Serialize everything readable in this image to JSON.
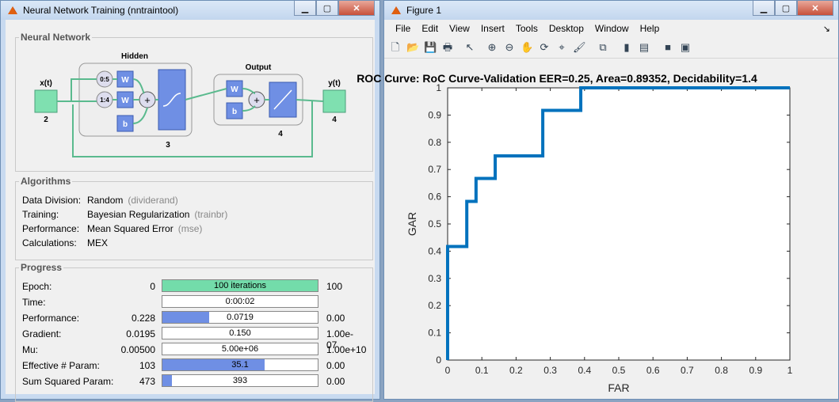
{
  "left_window": {
    "title": "Neural Network Training (nntraintool)",
    "network": {
      "section_title": "Neural Network",
      "input_label": "x(t)",
      "input_size": "2",
      "hidden_label": "Hidden",
      "hidden_size": "3",
      "delay1": "0:5",
      "delay2": "1:4",
      "weight": "W",
      "bias": "b",
      "plus": "+",
      "output_label": "Output",
      "output_size": "4",
      "y_label": "y(t)",
      "y_size": "4"
    },
    "algorithms": {
      "section_title": "Algorithms",
      "rows": [
        {
          "label": "Data Division:",
          "value": "Random",
          "fn": "(dividerand)"
        },
        {
          "label": "Training:",
          "value": "Bayesian Regularization",
          "fn": "(trainbr)"
        },
        {
          "label": "Performance:",
          "value": "Mean Squared Error",
          "fn": "(mse)"
        },
        {
          "label": "Calculations:",
          "value": "MEX",
          "fn": ""
        }
      ]
    },
    "progress": {
      "section_title": "Progress",
      "rows": [
        {
          "label": "Epoch:",
          "start": "0",
          "current": "100 iterations",
          "end": "100",
          "fill": 1.0,
          "color": "#73dcaa"
        },
        {
          "label": "Time:",
          "start": "",
          "current": "0:00:02",
          "end": "",
          "fill": 0,
          "color": "#6f8fe4"
        },
        {
          "label": "Performance:",
          "start": "0.228",
          "current": "0.0719",
          "end": "0.00",
          "fill": 0.3,
          "color": "#6f8fe4"
        },
        {
          "label": "Gradient:",
          "start": "0.0195",
          "current": "0.150",
          "end": "1.00e-07",
          "fill": 0,
          "color": "#6f8fe4"
        },
        {
          "label": "Mu:",
          "start": "0.00500",
          "current": "5.00e+06",
          "end": "1.00e+10",
          "fill": 0,
          "color": "#6f8fe4"
        },
        {
          "label": "Effective # Param:",
          "start": "103",
          "current": "35.1",
          "end": "0.00",
          "fill": 0.66,
          "color": "#6f8fe4"
        },
        {
          "label": "Sum Squared Param:",
          "start": "473",
          "current": "393",
          "end": "0.00",
          "fill": 0.06,
          "color": "#6f8fe4"
        }
      ]
    }
  },
  "right_window": {
    "title": "Figure 1",
    "menu": [
      "File",
      "Edit",
      "View",
      "Insert",
      "Tools",
      "Desktop",
      "Window",
      "Help"
    ],
    "toolbar_icons": [
      "new-figure-icon",
      "open-icon",
      "save-icon",
      "print-icon",
      "pointer-icon",
      "zoom-in-icon",
      "zoom-out-icon",
      "pan-icon",
      "rotate-icon",
      "data-cursor-icon",
      "brush-icon",
      "link-icon",
      "colorbar-icon",
      "legend-icon",
      "hide-plot-tools-icon",
      "show-plot-tools-icon"
    ]
  },
  "chart_data": {
    "type": "line",
    "title": "ROC Curve: RoC Curve-Validation    EER=0.25,   Area=0.89352,   Decidability=1.4",
    "xlabel": "FAR",
    "ylabel": "GAR",
    "xlim": [
      0,
      1
    ],
    "ylim": [
      0,
      1
    ],
    "xticks": [
      "0",
      "0.1",
      "0.2",
      "0.3",
      "0.4",
      "0.5",
      "0.6",
      "0.7",
      "0.8",
      "0.9",
      "1"
    ],
    "yticks": [
      "0",
      "0.1",
      "0.2",
      "0.3",
      "0.4",
      "0.5",
      "0.6",
      "0.7",
      "0.8",
      "0.9",
      "1"
    ],
    "grid": false,
    "series": [
      {
        "color": "#0072bd",
        "x": [
          0,
          0,
          0.056,
          0.056,
          0.083,
          0.083,
          0.139,
          0.139,
          0.278,
          0.278,
          0.389,
          0.389,
          1.0
        ],
        "y": [
          0,
          0.417,
          0.417,
          0.583,
          0.583,
          0.667,
          0.667,
          0.75,
          0.75,
          0.917,
          0.917,
          1.0,
          1.0
        ]
      }
    ]
  }
}
